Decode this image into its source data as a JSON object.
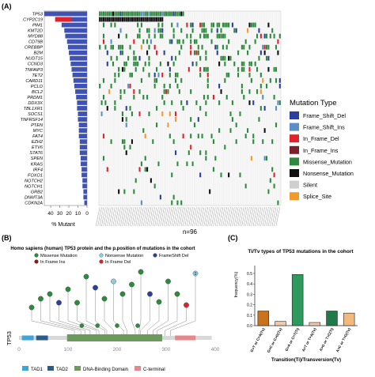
{
  "panels": {
    "a": "(A)",
    "b": "(B)",
    "c": "(C)"
  },
  "oncoplot": {
    "genes": [
      "TP53",
      "CYP2C19",
      "PIM1",
      "KMT2D",
      "MYD88",
      "CD79B",
      "CREBBP",
      "B2M",
      "NUDT15",
      "CCND3",
      "TNFAIP3",
      "TET2",
      "CARD11",
      "PCLO",
      "BCL2",
      "PRDM1",
      "DDX3X",
      "TBL1XR1",
      "SOCS1",
      "TNFRSF14",
      "PTEN",
      "MYC",
      "FAT4",
      "EZH2",
      "ETV6",
      "STAT6",
      "SPEN",
      "KRAS",
      "IRF4",
      "FOXO1",
      "NOTCH2",
      "NOTCH1",
      "GRB2",
      "DNMT3A",
      "CDKN2A"
    ],
    "xlabel": "% Mutant",
    "ticks": [
      "40",
      "30",
      "20",
      "10",
      "0"
    ],
    "n_label": "n=96",
    "legend_title": "Mutation Type",
    "legend": [
      {
        "label": "Frame_Shift_Del",
        "color": "#2b3f9e"
      },
      {
        "label": "Frame_Shift_Ins",
        "color": "#5b8fc9"
      },
      {
        "label": "In_Frame_Del",
        "color": "#e0222a"
      },
      {
        "label": "In_Frame_Ins",
        "color": "#7b1f2a"
      },
      {
        "label": "Missense_Mutation",
        "color": "#2e8b3e"
      },
      {
        "label": "Nonsense_Mutation",
        "color": "#111111"
      },
      {
        "label": "Silent",
        "color": "#cfcfcf"
      },
      {
        "label": "Splice_Site",
        "color": "#f39a2b"
      }
    ]
  },
  "lollipop": {
    "title": "Homo sapiens (human) TP53 protein and the p.position of mutations in the cohort",
    "ylabel": "TP53",
    "legend": [
      {
        "label": "Missense Mutation",
        "color": "#2e8b3e"
      },
      {
        "label": "Nonsense Mutation",
        "color": "#8ec9e8"
      },
      {
        "label": "FrameShift Del",
        "color": "#2b3f9e"
      },
      {
        "label": "In Frame Ins",
        "color": "#8b1a1a"
      },
      {
        "label": "In Frame Del",
        "color": "#e0222a"
      }
    ],
    "ticks": [
      "0",
      "100",
      "200",
      "300",
      "400"
    ],
    "domains": [
      {
        "label": "TAD1",
        "color": "#3da5d9"
      },
      {
        "label": "TAD2",
        "color": "#2b5d8a"
      },
      {
        "label": "DNA-Binding Domain",
        "color": "#6b9a5c"
      },
      {
        "label": "C-terminal",
        "color": "#e6888a"
      }
    ],
    "marker_labels": [
      "2",
      "3"
    ]
  },
  "chart_data": [
    {
      "type": "bar",
      "orientation": "horizontal",
      "categories": [
        "TP53",
        "CYP2C19",
        "PIM1",
        "KMT2D",
        "MYD88",
        "CD79B",
        "CREBBP",
        "B2M",
        "NUDT15",
        "CCND3",
        "TNFAIP3",
        "TET2",
        "CARD11",
        "PCLO",
        "BCL2",
        "PRDM1",
        "DDX3X",
        "TBL1XR1",
        "SOCS1",
        "TNFRSF14",
        "PTEN",
        "MYC",
        "FAT4",
        "EZH2",
        "ETV6",
        "STAT6",
        "SPEN",
        "KRAS",
        "IRF4",
        "FOXO1",
        "NOTCH2",
        "NOTCH1",
        "GRB2",
        "DNMT3A",
        "CDKN2A"
      ],
      "values": [
        47,
        35,
        28,
        25,
        24,
        22,
        21,
        20,
        19,
        18,
        17,
        16,
        15,
        14,
        13,
        12,
        11,
        11,
        10,
        10,
        9,
        9,
        9,
        8,
        8,
        8,
        7,
        7,
        6,
        6,
        5,
        5,
        4,
        4,
        3
      ],
      "xlabel": "% Mutant",
      "xlim": [
        0,
        47
      ]
    },
    {
      "type": "bar",
      "title": "Ti/Tv types of TP53 mutations in the cohort",
      "categories": [
        "G>T or C>A(Tv)",
        "G>C or C>G(Tv)",
        "G>A or C>T(Ti)",
        "A>T or T>A(Tv)",
        "A>G or T>C(Ti)",
        "A>C or T>G(Tv)"
      ],
      "values": [
        0.14,
        0.04,
        0.49,
        0.03,
        0.14,
        0.12
      ],
      "colors": [
        "#c8741f",
        "#f2c9a8",
        "#2e9a5e",
        "#f2c9a8",
        "#1f7a4a",
        "#f3b87b"
      ],
      "xlabel": "Transition(Ti)/Transversion(Tv)",
      "ylabel": "frequency(%)",
      "ylim": [
        0,
        0.5
      ],
      "yticks": [
        "0.0",
        "0.1",
        "0.2",
        "0.3",
        "0.4",
        "0.5"
      ]
    }
  ]
}
